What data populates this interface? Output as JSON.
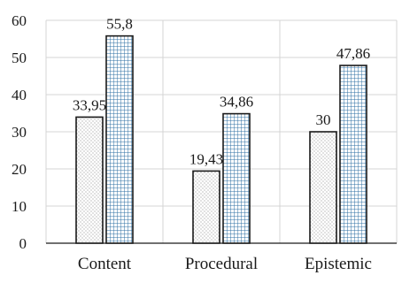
{
  "chart_data": {
    "type": "bar",
    "categories": [
      "Content",
      "Procedural",
      "Epistemic"
    ],
    "series": [
      {
        "values": [
          33.95,
          19.43,
          30
        ],
        "labels": [
          "33,95",
          "19,43",
          "30"
        ],
        "pattern": "dotted",
        "color": "#7f7f7f"
      },
      {
        "values": [
          55.8,
          34.86,
          47.86
        ],
        "labels": [
          "55,8",
          "34,86",
          "47,86"
        ],
        "pattern": "grid",
        "color": "#2e6fa3"
      }
    ],
    "yticks": [
      "0",
      "10",
      "20",
      "30",
      "40",
      "50",
      "60"
    ],
    "ylim": [
      0,
      60
    ],
    "grid": true,
    "legend": "none"
  }
}
